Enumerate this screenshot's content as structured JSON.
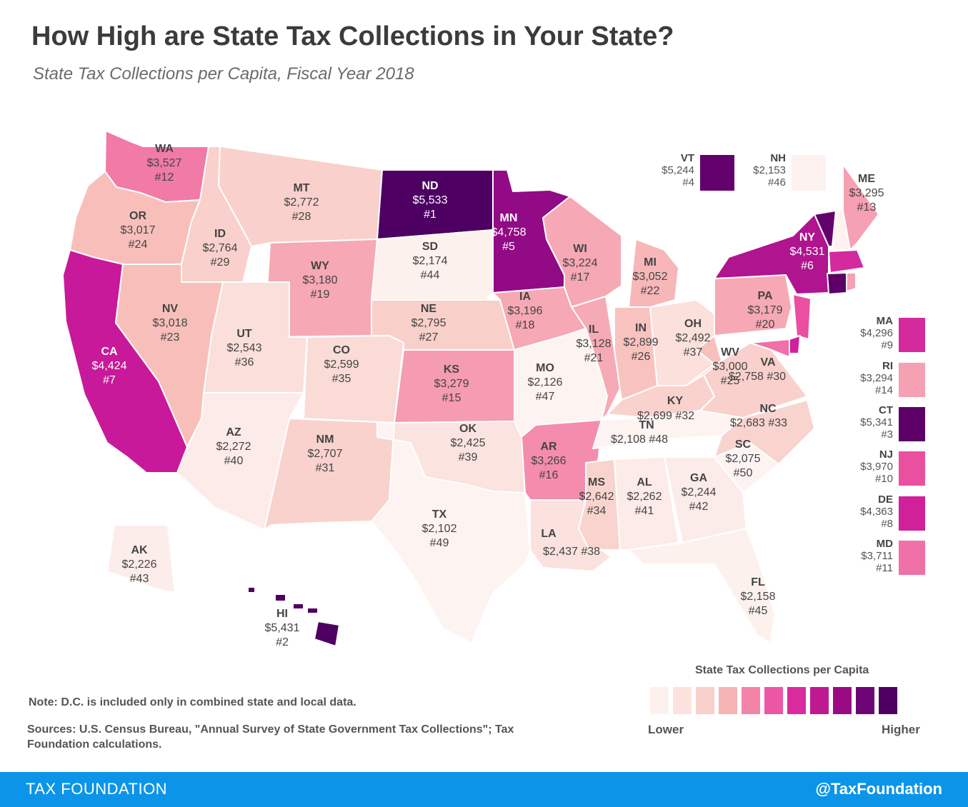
{
  "title": "How High are State Tax Collections in Your State?",
  "subtitle": "State Tax Collections per Capita, Fiscal Year 2018",
  "note": "Note: D.C. is included only in combined state and local data.",
  "sources": "Sources: U.S. Census Bureau, \"Annual Survey of State Government Tax Collections\"; Tax Foundation calculations.",
  "legend": {
    "title": "State Tax Collections per Capita",
    "lower": "Lower",
    "higher": "Higher",
    "colors": [
      "#fdf1ee",
      "#fbe2de",
      "#f8cfca",
      "#f7b4b5",
      "#f483a8",
      "#ec56a4",
      "#d92b9e",
      "#c01890",
      "#9a0a83",
      "#6d0576",
      "#4d0062"
    ]
  },
  "footer": {
    "left": "TAX FOUNDATION",
    "right": "@TaxFoundation"
  },
  "chart_data": {
    "type": "choropleth",
    "title": "How High are State Tax Collections in Your State?",
    "subtitle": "State Tax Collections per Capita, Fiscal Year 2018",
    "states": [
      {
        "abbr": "ND",
        "value": "$5,533",
        "rank": "#1",
        "color": "#4d0062"
      },
      {
        "abbr": "HI",
        "value": "$5,431",
        "rank": "#2",
        "color": "#4d0062"
      },
      {
        "abbr": "CT",
        "value": "$5,341",
        "rank": "#3",
        "color": "#5c0068"
      },
      {
        "abbr": "VT",
        "value": "$5,244",
        "rank": "#4",
        "color": "#62006c"
      },
      {
        "abbr": "MN",
        "value": "$4,758",
        "rank": "#5",
        "color": "#920a85"
      },
      {
        "abbr": "NY",
        "value": "$4,531",
        "rank": "#6",
        "color": "#b0148e"
      },
      {
        "abbr": "CA",
        "value": "$4,424",
        "rank": "#7",
        "color": "#c8199a"
      },
      {
        "abbr": "DE",
        "value": "$4,363",
        "rank": "#8",
        "color": "#d0209a"
      },
      {
        "abbr": "MA",
        "value": "$4,296",
        "rank": "#9",
        "color": "#d42a9e"
      },
      {
        "abbr": "NJ",
        "value": "$3,970",
        "rank": "#10",
        "color": "#ea4fa0"
      },
      {
        "abbr": "MD",
        "value": "$3,711",
        "rank": "#11",
        "color": "#f070a8"
      },
      {
        "abbr": "WA",
        "value": "$3,527",
        "rank": "#12",
        "color": "#f17aa7"
      },
      {
        "abbr": "ME",
        "value": "$3,295",
        "rank": "#13",
        "color": "#f6a0b3"
      },
      {
        "abbr": "RI",
        "value": "$3,294",
        "rank": "#14",
        "color": "#f6a0b3"
      },
      {
        "abbr": "KS",
        "value": "$3,279",
        "rank": "#15",
        "color": "#f59cb1"
      },
      {
        "abbr": "AR",
        "value": "$3,266",
        "rank": "#16",
        "color": "#f48cad"
      },
      {
        "abbr": "WI",
        "value": "$3,224",
        "rank": "#17",
        "color": "#f6a8b5"
      },
      {
        "abbr": "IA",
        "value": "$3,196",
        "rank": "#18",
        "color": "#f6a8b5"
      },
      {
        "abbr": "WY",
        "value": "$3,180",
        "rank": "#19",
        "color": "#f6a8b5"
      },
      {
        "abbr": "PA",
        "value": "$3,179",
        "rank": "#20",
        "color": "#f6a8b5"
      },
      {
        "abbr": "IL",
        "value": "$3,128",
        "rank": "#21",
        "color": "#f6aab5"
      },
      {
        "abbr": "MI",
        "value": "$3,052",
        "rank": "#22",
        "color": "#f7b7b9"
      },
      {
        "abbr": "NV",
        "value": "$3,018",
        "rank": "#23",
        "color": "#f8bfba"
      },
      {
        "abbr": "OR",
        "value": "$3,017",
        "rank": "#24",
        "color": "#f8bfba"
      },
      {
        "abbr": "WV",
        "value": "$3,000",
        "rank": "#25",
        "color": "#f8c0bc"
      },
      {
        "abbr": "IN",
        "value": "$2,899",
        "rank": "#26",
        "color": "#f8c3bf"
      },
      {
        "abbr": "NE",
        "value": "$2,795",
        "rank": "#27",
        "color": "#f9cfca"
      },
      {
        "abbr": "MT",
        "value": "$2,772",
        "rank": "#28",
        "color": "#f9d0cb"
      },
      {
        "abbr": "ID",
        "value": "$2,764",
        "rank": "#29",
        "color": "#f9d0cb"
      },
      {
        "abbr": "VA",
        "value": "$2,758",
        "rank": "#30",
        "color": "#f9d0cb"
      },
      {
        "abbr": "NM",
        "value": "$2,707",
        "rank": "#31",
        "color": "#f9d2cd"
      },
      {
        "abbr": "KY",
        "value": "$2,699",
        "rank": "#32",
        "color": "#f9d2cd"
      },
      {
        "abbr": "NC",
        "value": "$2,683",
        "rank": "#33",
        "color": "#f9d4cf"
      },
      {
        "abbr": "MS",
        "value": "$2,642",
        "rank": "#34",
        "color": "#f9d4cf"
      },
      {
        "abbr": "CO",
        "value": "$2,599",
        "rank": "#35",
        "color": "#fadbd6"
      },
      {
        "abbr": "UT",
        "value": "$2,543",
        "rank": "#36",
        "color": "#fbdfda"
      },
      {
        "abbr": "OH",
        "value": "$2,492",
        "rank": "#37",
        "color": "#fbe0dc"
      },
      {
        "abbr": "LA",
        "value": "$2,437",
        "rank": "#38",
        "color": "#fbe2de"
      },
      {
        "abbr": "OK",
        "value": "$2,425",
        "rank": "#39",
        "color": "#fbe3df"
      },
      {
        "abbr": "AZ",
        "value": "$2,272",
        "rank": "#40",
        "color": "#fcebe8"
      },
      {
        "abbr": "AL",
        "value": "$2,262",
        "rank": "#41",
        "color": "#fcebe8"
      },
      {
        "abbr": "GA",
        "value": "$2,244",
        "rank": "#42",
        "color": "#fcece9"
      },
      {
        "abbr": "AK",
        "value": "$2,226",
        "rank": "#43",
        "color": "#fcedea"
      },
      {
        "abbr": "SD",
        "value": "$2,174",
        "rank": "#44",
        "color": "#fdf1ee"
      },
      {
        "abbr": "FL",
        "value": "$2,158",
        "rank": "#45",
        "color": "#fdf1ee"
      },
      {
        "abbr": "NH",
        "value": "$2,153",
        "rank": "#46",
        "color": "#fdf2ef"
      },
      {
        "abbr": "MO",
        "value": "$2,126",
        "rank": "#47",
        "color": "#fdf3f0"
      },
      {
        "abbr": "TN",
        "value": "$2,108",
        "rank": "#48",
        "color": "#fdf3f0"
      },
      {
        "abbr": "TX",
        "value": "$2,102",
        "rank": "#49",
        "color": "#fdf3f0"
      },
      {
        "abbr": "SC",
        "value": "$2,075",
        "rank": "#50",
        "color": "#fdf4f2"
      }
    ]
  }
}
